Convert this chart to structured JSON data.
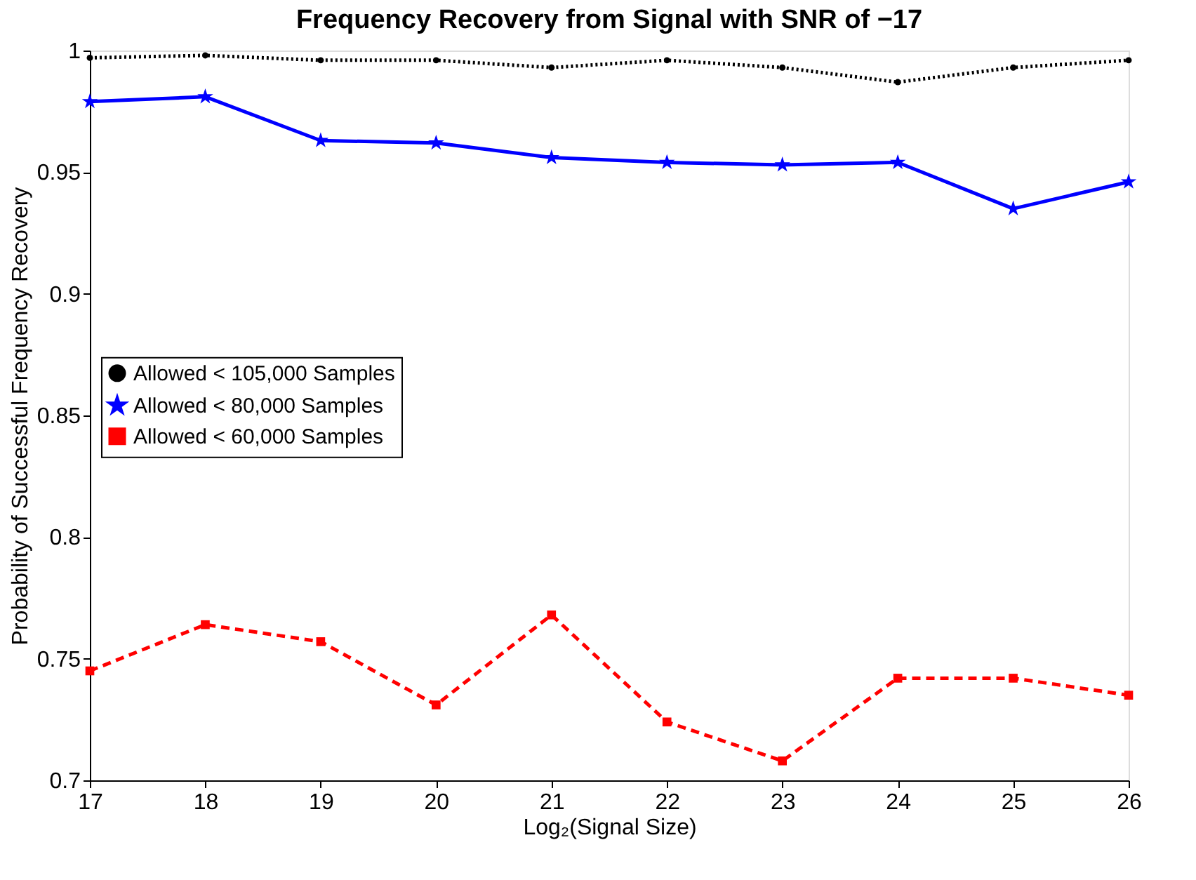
{
  "chart_data": {
    "type": "line",
    "title": "Frequency Recovery from Signal with SNR of −17",
    "xlabel": "Log₂(Signal Size)",
    "ylabel": "Probability of Successful Frequency Recovery",
    "x": [
      17,
      18,
      19,
      20,
      21,
      22,
      23,
      24,
      25,
      26
    ],
    "series": [
      {
        "name": "Allowed < 105,000 Samples",
        "color": "#000000",
        "marker": "circle",
        "line_style": "dotted",
        "values": [
          0.997,
          0.998,
          0.996,
          0.996,
          0.993,
          0.996,
          0.993,
          0.987,
          0.993,
          0.996
        ]
      },
      {
        "name": "Allowed < 80,000 Samples",
        "color": "#0000ff",
        "marker": "star",
        "line_style": "solid",
        "values": [
          0.979,
          0.981,
          0.963,
          0.962,
          0.956,
          0.954,
          0.953,
          0.954,
          0.935,
          0.946
        ]
      },
      {
        "name": "Allowed < 60,000 Samples",
        "color": "#ff0000",
        "marker": "square",
        "line_style": "dashed",
        "values": [
          0.745,
          0.764,
          0.757,
          0.731,
          0.768,
          0.724,
          0.708,
          0.742,
          0.742,
          0.735
        ]
      }
    ],
    "xlim": [
      17,
      26
    ],
    "xticks": [
      17,
      18,
      19,
      20,
      21,
      22,
      23,
      24,
      25,
      26
    ],
    "ylim": [
      0.7,
      1
    ],
    "yticks": [
      0.7,
      0.75,
      0.8,
      0.85,
      0.9,
      0.95,
      1
    ],
    "grid": false,
    "legend": "left"
  }
}
